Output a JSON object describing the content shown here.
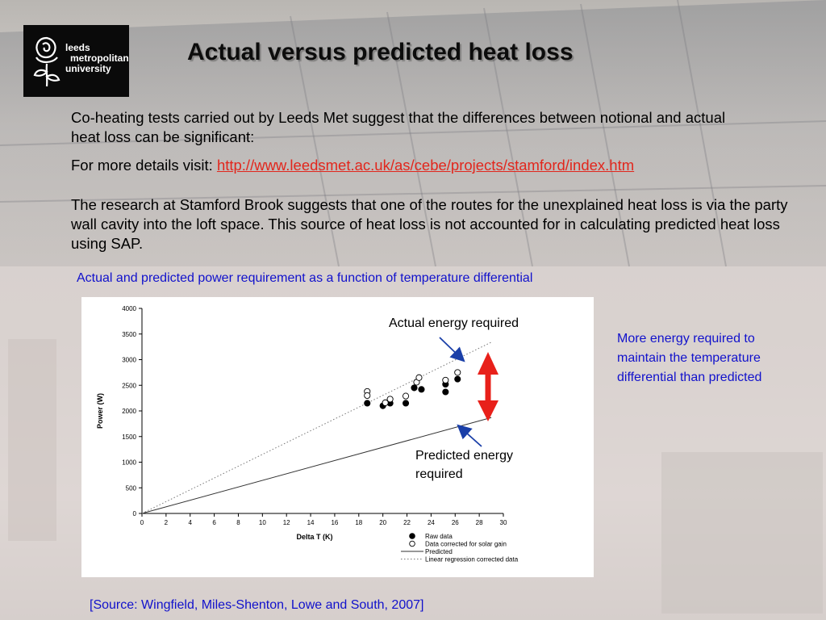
{
  "logo": {
    "line1": "leeds",
    "line2": "metropolitan",
    "line3": "university"
  },
  "title": "Actual versus predicted heat loss",
  "paragraph1": "Co-heating tests carried out by Leeds Met suggest that the differences between notional and actual heat loss can be significant:",
  "paragraph2_prefix": "For more details visit: ",
  "paragraph2_link": "http://www.leedsmet.ac.uk/as/cebe/projects/stamford/index.htm",
  "paragraph3": "The research at Stamford Brook suggests that one of the routes for the unexplained heat loss is via the party wall cavity into the loft space.  This source of heat loss is not accounted for in calculating predicted heat loss using SAP.",
  "chart_caption": "Actual and predicted power requirement as a function of temperature differential",
  "annotation_actual": "Actual energy required",
  "annotation_predicted": "Predicted energy required",
  "side_note": "More energy required to maintain the temperature differential than predicted",
  "source": "[Source: Wingfield, Miles-Shenton, Lowe and South, 2007]",
  "colors": {
    "link": "#e2261c",
    "blue_text": "#1111cc",
    "arrow_red": "#e8201a",
    "pointer_blue": "#1a3fa8"
  },
  "chart_data": {
    "type": "scatter",
    "xlabel": "Delta T (K)",
    "ylabel": "Power (W)",
    "xlim": [
      0,
      30
    ],
    "ylim": [
      0,
      4000
    ],
    "x_ticks": [
      0,
      2,
      4,
      6,
      8,
      10,
      12,
      14,
      16,
      18,
      20,
      22,
      24,
      26,
      28,
      30
    ],
    "y_ticks": [
      0,
      500,
      1000,
      1500,
      2000,
      2500,
      3000,
      3500,
      4000
    ],
    "legend_position": "bottom-right",
    "series": [
      {
        "name": "Raw data",
        "marker": "filled-circle",
        "points": [
          [
            18.7,
            2150
          ],
          [
            20.0,
            2100
          ],
          [
            20.6,
            2150
          ],
          [
            21.9,
            2150
          ],
          [
            22.6,
            2450
          ],
          [
            23.2,
            2420
          ],
          [
            25.2,
            2370
          ],
          [
            25.2,
            2520
          ],
          [
            26.2,
            2620
          ]
        ]
      },
      {
        "name": "Data corrected for solar gain",
        "marker": "open-circle",
        "points": [
          [
            18.7,
            2380
          ],
          [
            18.7,
            2300
          ],
          [
            20.2,
            2160
          ],
          [
            20.6,
            2230
          ],
          [
            21.9,
            2290
          ],
          [
            22.8,
            2560
          ],
          [
            23.0,
            2650
          ],
          [
            25.2,
            2600
          ],
          [
            26.2,
            2750
          ]
        ]
      },
      {
        "name": "Predicted",
        "style": "solid-line",
        "points": [
          [
            0,
            0
          ],
          [
            29,
            1870
          ]
        ]
      },
      {
        "name": "Linear regression corrected data",
        "style": "dotted-line",
        "points": [
          [
            0,
            0
          ],
          [
            29,
            3340
          ]
        ]
      }
    ]
  }
}
